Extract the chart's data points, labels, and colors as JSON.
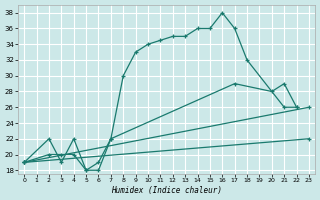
{
  "xlabel": "Humidex (Indice chaleur)",
  "background_color": "#cce8e8",
  "grid_color": "#ffffff",
  "line_color": "#1a7a6e",
  "xlim": [
    -0.5,
    23.5
  ],
  "ylim": [
    17.5,
    39.0
  ],
  "xticks": [
    0,
    1,
    2,
    3,
    4,
    5,
    6,
    7,
    8,
    9,
    10,
    11,
    12,
    13,
    14,
    15,
    16,
    17,
    18,
    19,
    20,
    21,
    22,
    23
  ],
  "yticks": [
    18,
    20,
    22,
    24,
    26,
    28,
    30,
    32,
    34,
    36,
    38
  ],
  "line1_x": [
    0,
    2,
    3,
    4,
    5,
    6,
    7,
    8,
    9,
    10,
    11,
    12,
    13,
    14,
    15,
    16,
    17,
    18,
    21,
    22
  ],
  "line1_y": [
    19,
    22,
    19,
    22,
    18,
    19,
    22,
    30,
    33,
    34,
    34.5,
    35,
    35,
    36,
    36,
    38,
    36,
    32,
    26,
    26
  ],
  "line2_x": [
    0,
    2,
    3,
    4,
    5,
    6,
    7,
    17,
    20,
    21,
    22
  ],
  "line2_y": [
    19,
    20,
    20,
    20,
    18,
    18,
    22,
    29,
    28,
    29,
    26
  ],
  "line3_x": [
    0,
    23
  ],
  "line3_y": [
    19,
    26
  ],
  "line4_x": [
    0,
    23
  ],
  "line4_y": [
    19,
    22
  ]
}
